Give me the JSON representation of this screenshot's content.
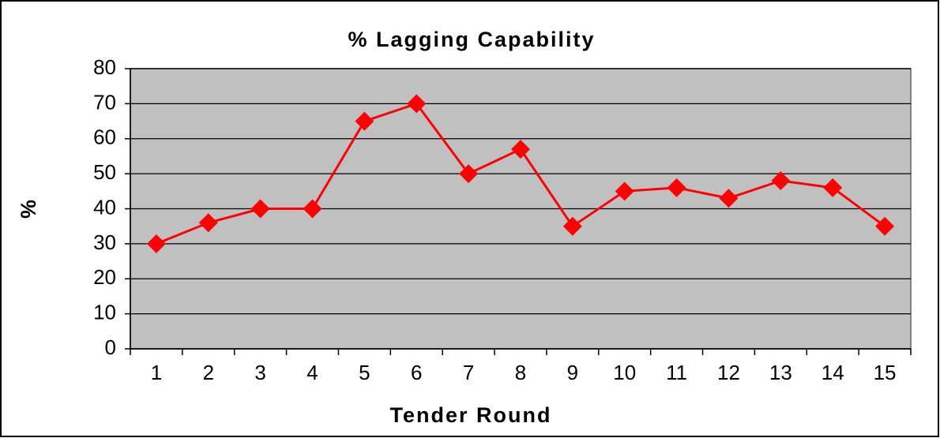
{
  "chart_data": {
    "type": "line",
    "title": "% Lagging Capability",
    "x_label": "Tender Round",
    "y_label": "%",
    "categories": [
      "1",
      "2",
      "3",
      "4",
      "5",
      "6",
      "7",
      "8",
      "9",
      "10",
      "11",
      "12",
      "13",
      "14",
      "15"
    ],
    "series": [
      {
        "name": "% Lagging Capability",
        "color": "#ff0000",
        "values": [
          30,
          36,
          40,
          40,
          65,
          70,
          50,
          57,
          35,
          45,
          46,
          43,
          48,
          46,
          35
        ]
      }
    ],
    "ylim": [
      0,
      80
    ],
    "yticks": [
      0,
      10,
      20,
      30,
      40,
      50,
      60,
      70,
      80
    ],
    "grid": true
  }
}
